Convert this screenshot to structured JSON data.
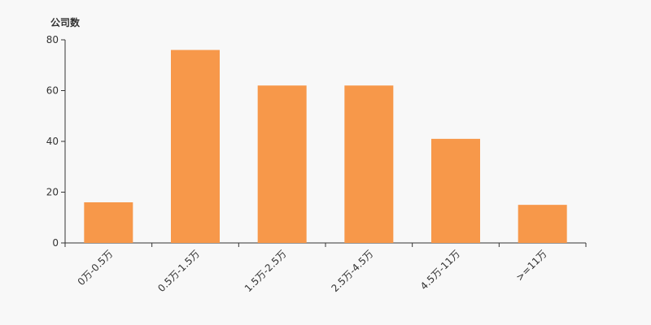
{
  "chart_data": {
    "type": "bar",
    "title": "",
    "ylabel": "公司数",
    "xlabel": "",
    "categories": [
      "0万-0.5万",
      "0.5万-1.5万",
      "1.5万-2.5万",
      "2.5万-4.5万",
      "4.5万-11万",
      ">=11万"
    ],
    "values": [
      16,
      76,
      62,
      62,
      41,
      15
    ],
    "ylim": [
      0,
      80
    ],
    "yticks": [
      0,
      20,
      40,
      60,
      80
    ],
    "grid": false,
    "bar_color": "#f7984a"
  }
}
